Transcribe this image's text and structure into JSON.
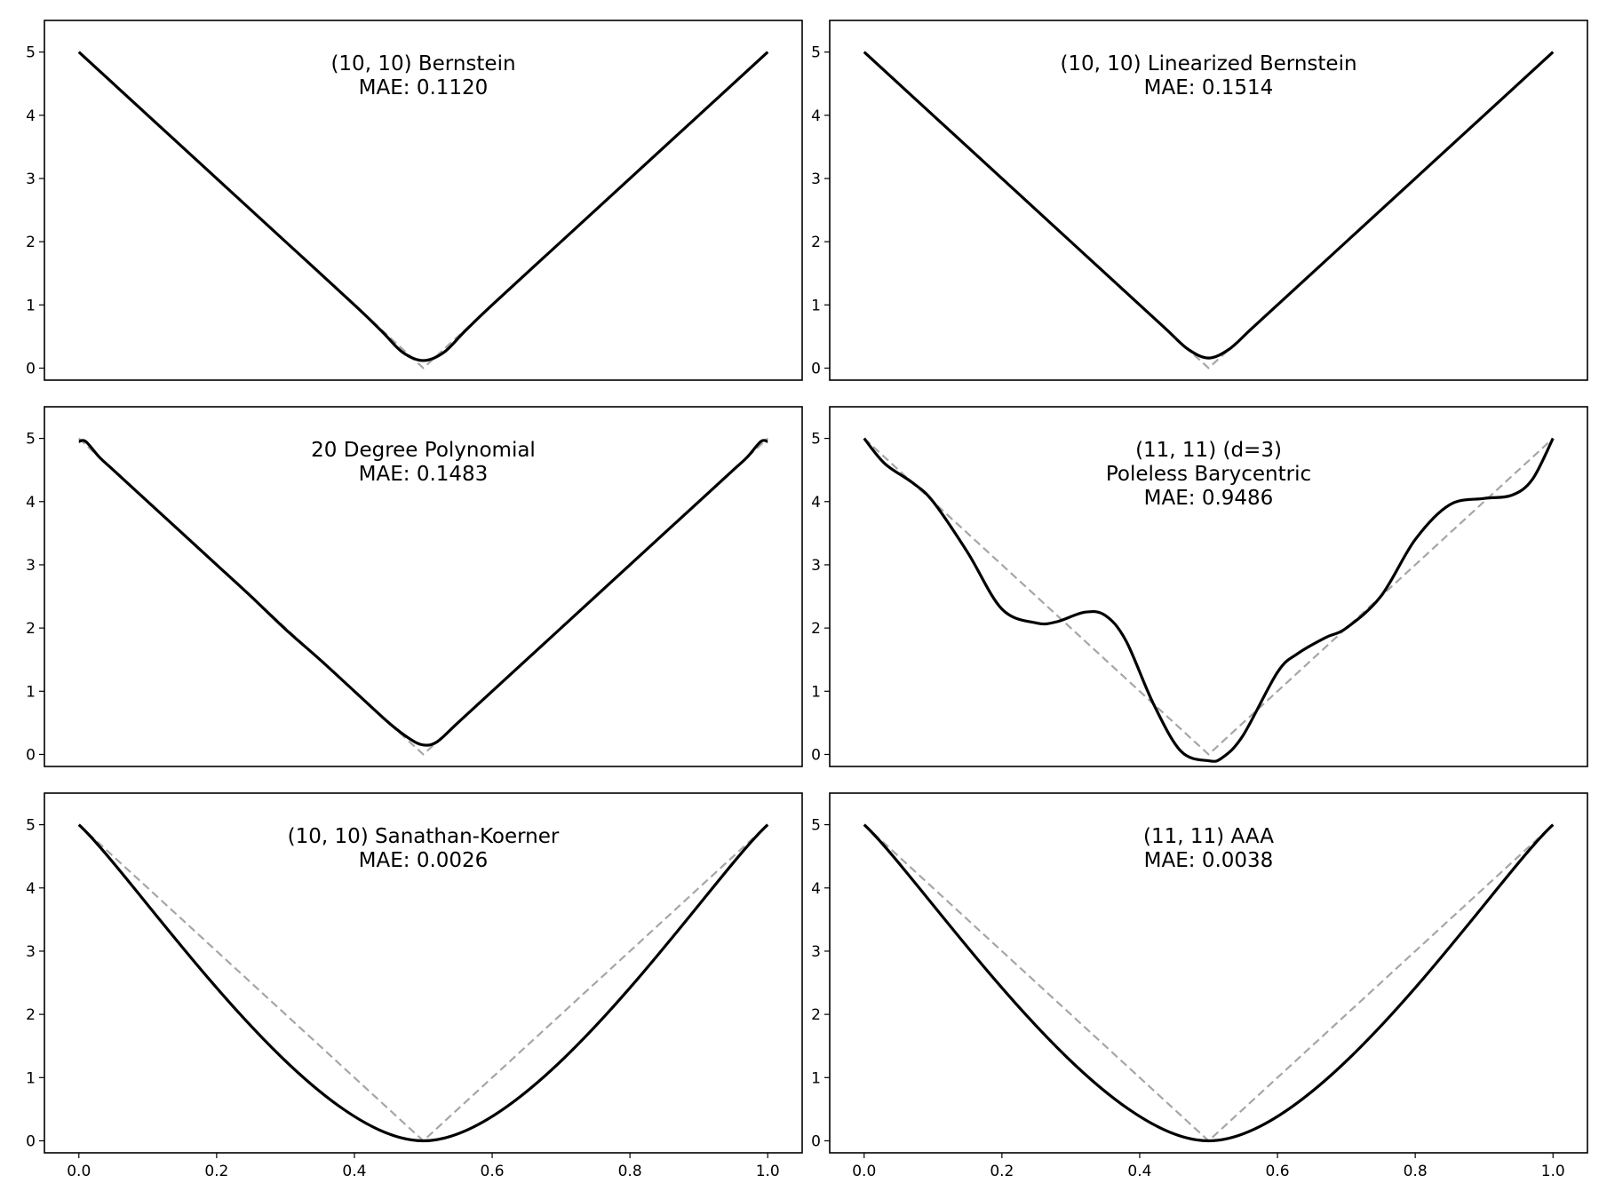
{
  "colors": {
    "fit": "#000000",
    "target": "#a6a6a6",
    "frame": "#000000",
    "background": "#ffffff"
  },
  "shared_axes": {
    "xlim": [
      -0.05,
      1.05
    ],
    "ylim": [
      -0.19,
      5.5
    ],
    "x_ticks": [
      "0.0",
      "0.2",
      "0.4",
      "0.6",
      "0.8",
      "1.0"
    ],
    "y_ticks": [
      "0",
      "1",
      "2",
      "3",
      "4",
      "5"
    ]
  },
  "chart_data": [
    {
      "type": "line",
      "annotation": [
        "(10, 10) Bernstein",
        "MAE: 0.1120"
      ],
      "series": [
        {
          "role": "fit",
          "x": [
            0.0,
            0.1,
            0.2,
            0.3,
            0.4,
            0.44,
            0.47,
            0.5,
            0.53,
            0.56,
            0.6,
            0.7,
            0.8,
            0.9,
            1.0
          ],
          "y": [
            5.0,
            4.0,
            3.0,
            2.0,
            1.0,
            0.58,
            0.25,
            0.12,
            0.25,
            0.58,
            1.0,
            2.0,
            3.0,
            4.0,
            5.0
          ]
        },
        {
          "role": "target",
          "x": [
            0.0,
            0.5,
            1.0
          ],
          "y": [
            5.0,
            0.0,
            5.0
          ]
        }
      ]
    },
    {
      "type": "line",
      "annotation": [
        "(10, 10) Linearized Bernstein",
        "MAE: 0.1514"
      ],
      "series": [
        {
          "role": "fit",
          "x": [
            0.0,
            0.1,
            0.2,
            0.3,
            0.4,
            0.44,
            0.47,
            0.5,
            0.53,
            0.56,
            0.6,
            0.7,
            0.8,
            0.9,
            1.0
          ],
          "y": [
            5.0,
            4.0,
            3.0,
            2.0,
            1.0,
            0.6,
            0.3,
            0.16,
            0.3,
            0.6,
            1.0,
            2.0,
            3.0,
            4.0,
            5.0
          ]
        },
        {
          "role": "target",
          "x": [
            0.0,
            0.5,
            1.0
          ],
          "y": [
            5.0,
            0.0,
            5.0
          ]
        }
      ]
    },
    {
      "type": "line",
      "annotation": [
        "20 Degree Polynomial",
        "MAE: 0.1483"
      ],
      "series": [
        {
          "role": "fit",
          "x": [
            0.0,
            0.01,
            0.03,
            0.05,
            0.1,
            0.15,
            0.2,
            0.25,
            0.3,
            0.35,
            0.4,
            0.45,
            0.48,
            0.5,
            0.52,
            0.55,
            0.6,
            0.65,
            0.7,
            0.75,
            0.8,
            0.85,
            0.9,
            0.95,
            0.97,
            0.99,
            1.0
          ],
          "y": [
            4.95,
            4.95,
            4.7,
            4.5,
            4.0,
            3.5,
            3.0,
            2.5,
            1.98,
            1.5,
            1.0,
            0.5,
            0.25,
            0.15,
            0.2,
            0.5,
            1.0,
            1.5,
            2.0,
            2.5,
            3.0,
            3.5,
            4.0,
            4.5,
            4.7,
            4.95,
            4.95
          ]
        },
        {
          "role": "target",
          "x": [
            0.0,
            0.5,
            1.0
          ],
          "y": [
            5.0,
            0.0,
            5.0
          ]
        }
      ]
    },
    {
      "type": "line",
      "annotation": [
        "(11, 11) (d=3)",
        "Poleless Barycentric",
        "MAE: 0.9486"
      ],
      "series": [
        {
          "role": "fit",
          "x": [
            0.0,
            0.03,
            0.07,
            0.1,
            0.15,
            0.2,
            0.25,
            0.28,
            0.32,
            0.35,
            0.38,
            0.42,
            0.46,
            0.5,
            0.52,
            0.55,
            0.6,
            0.63,
            0.67,
            0.7,
            0.75,
            0.8,
            0.85,
            0.9,
            0.94,
            0.97,
            1.0
          ],
          "y": [
            5.0,
            4.6,
            4.3,
            4.0,
            3.2,
            2.3,
            2.08,
            2.1,
            2.25,
            2.2,
            1.8,
            0.8,
            0.05,
            -0.1,
            -0.05,
            0.3,
            1.3,
            1.6,
            1.85,
            2.0,
            2.5,
            3.4,
            3.95,
            4.05,
            4.1,
            4.35,
            5.0
          ]
        },
        {
          "role": "target",
          "x": [
            0.0,
            0.5,
            1.0
          ],
          "y": [
            5.0,
            0.0,
            5.0
          ]
        }
      ]
    },
    {
      "type": "line",
      "annotation": [
        "(10, 10) Sanathan-Koerner",
        "MAE: 0.0026"
      ],
      "series": [
        {
          "role": "fit",
          "x": [
            0.0,
            0.5,
            1.0
          ],
          "y": [
            5.0,
            0.0,
            5.0
          ]
        },
        {
          "role": "target",
          "x": [
            0.0,
            0.5,
            1.0
          ],
          "y": [
            5.0,
            0.0,
            5.0
          ]
        }
      ]
    },
    {
      "type": "line",
      "annotation": [
        "(11, 11) AAA",
        "MAE: 0.0038"
      ],
      "series": [
        {
          "role": "fit",
          "x": [
            0.0,
            0.5,
            1.0
          ],
          "y": [
            5.0,
            0.0,
            5.0
          ]
        },
        {
          "role": "target",
          "x": [
            0.0,
            0.5,
            1.0
          ],
          "y": [
            5.0,
            0.0,
            5.0
          ]
        }
      ]
    }
  ]
}
